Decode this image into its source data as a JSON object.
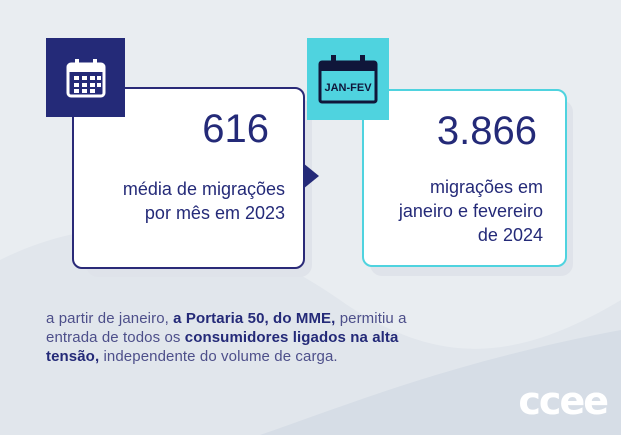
{
  "card_left": {
    "value": "616",
    "description_line1": "média de migrações",
    "description_line2": "por mês em 2023",
    "icon": "calendar-icon"
  },
  "card_right": {
    "value": "3.866",
    "description_line1": "migrações em",
    "description_line2": "janeiro e fevereiro",
    "description_line3": "de 2024",
    "icon": "calendar-icon",
    "icon_label": "JAN-FEV"
  },
  "footer": {
    "part1": "a partir de janeiro, ",
    "part2": "a Portaria 50, do MME,",
    "part3": " permitiu a entrada de todos os ",
    "part4": "consumidores ligados na alta tensão,",
    "part5": " independente do volume de carga."
  },
  "logo": {
    "text": "ccee"
  },
  "colors": {
    "navy": "#242a78",
    "cyan": "#4fd3df",
    "background": "#e9edf1"
  }
}
